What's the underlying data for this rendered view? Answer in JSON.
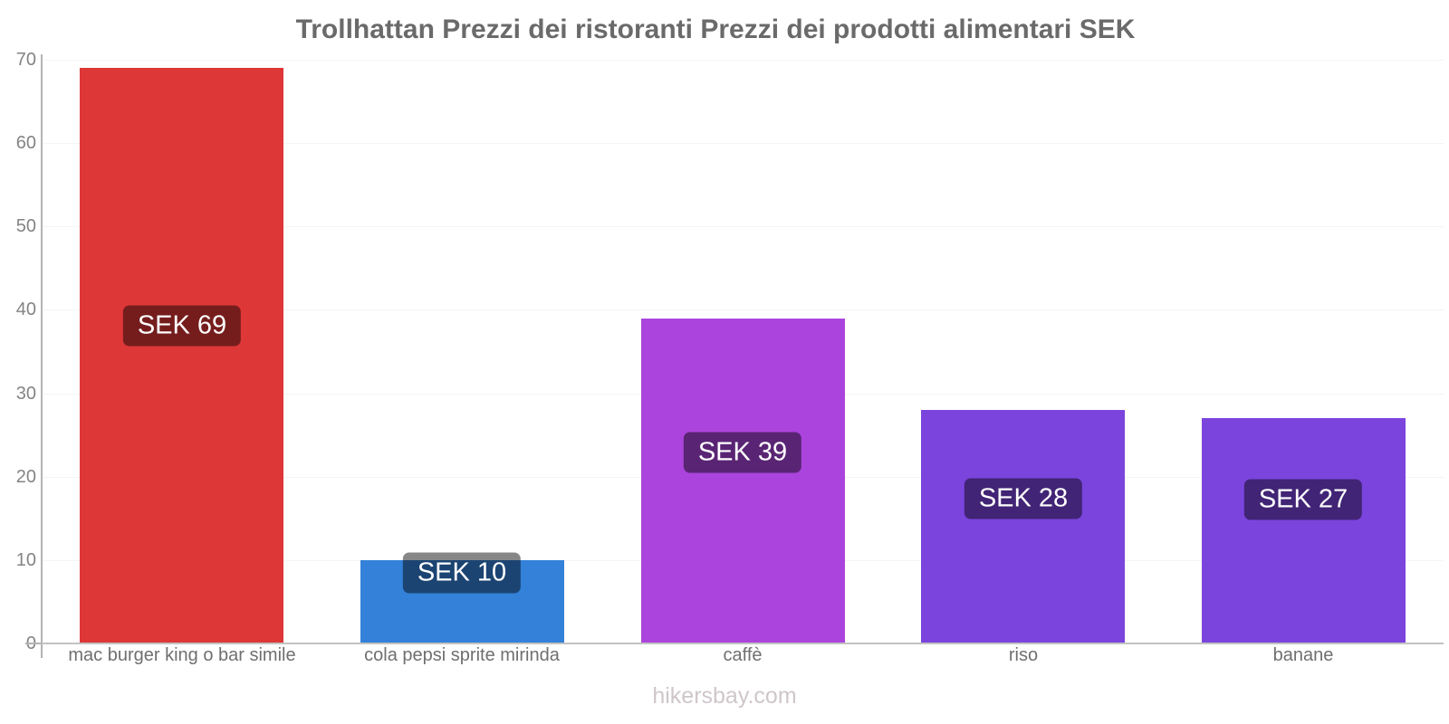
{
  "title": "Trollhattan Prezzi dei ristoranti Prezzi dei prodotti alimentari SEK",
  "footer": "hikersbay.com",
  "chart_data": {
    "type": "bar",
    "title": "Trollhattan Prezzi dei ristoranti Prezzi dei prodotti alimentari SEK",
    "categories": [
      "mac burger king o bar simile",
      "cola pepsi sprite mirinda",
      "caffè",
      "riso",
      "banane"
    ],
    "values": [
      69,
      10,
      39,
      28,
      27
    ],
    "bar_labels": [
      "SEK 69",
      "SEK 10",
      "SEK 39",
      "SEK 28",
      "SEK 27"
    ],
    "bar_colors": [
      "#de3737",
      "#3381d8",
      "#ab44dc",
      "#7b44dd",
      "#7b44dd"
    ],
    "currency": "SEK",
    "xlabel": "",
    "ylabel": "",
    "ylim": [
      0,
      70
    ],
    "yticks": [
      0,
      10,
      20,
      30,
      40,
      50,
      60,
      70
    ],
    "grid": true,
    "legend": false,
    "label_style": {
      "background": "rgba(0,0,0,0.47)",
      "text_color": "#ffffff"
    },
    "colors": {
      "title": "#6a6a6a",
      "axis_line": "#b3b3b3",
      "baseline": "#c2c2c2",
      "gridline": "#f4f4f4",
      "tick_label": "#848484",
      "category_label": "#6f6f6f",
      "footer": "#cfc6cb"
    }
  }
}
